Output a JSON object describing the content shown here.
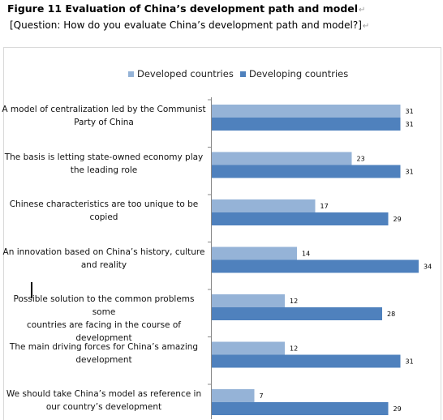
{
  "header": {
    "title": "Figure 11 Evaluation of China’s development path and model",
    "subtitle": "[Question: How do you evaluate China’s development path and model?]"
  },
  "colors": {
    "developed": "#95b3d7",
    "developing": "#4f81bd"
  },
  "chart_data": {
    "type": "bar",
    "orientation": "horizontal",
    "legend_position": "top",
    "grid": false,
    "categories": [
      "A model of centralization led by the Communist Party of China",
      "The basis is letting state-owned economy play the leading role",
      "Chinese characteristics are too unique to be copied",
      "An innovation based on China’s history, culture and reality",
      "Possible solution to the common problems some countries are facing in the course of development",
      "The main driving forces for China’s amazing development",
      "We should take China’s model as reference in our country’s development"
    ],
    "category_lines": [
      [
        "A model of centralization led by the Communist",
        "Party of China"
      ],
      [
        "The basis is letting state-owned economy play",
        "the leading role"
      ],
      [
        "Chinese characteristics are too unique to be",
        "copied"
      ],
      [
        "An innovation based on China’s history, culture",
        "and reality"
      ],
      [
        "Possible solution to the common problems some",
        "countries are facing in the course of development"
      ],
      [
        "The main driving forces for China’s amazing",
        "development"
      ],
      [
        "We should take China’s model as reference in",
        "our country’s development"
      ]
    ],
    "series": [
      {
        "name": "Developed countries",
        "values": [
          31,
          23,
          17,
          14,
          12,
          12,
          7
        ]
      },
      {
        "name": "Developing countries",
        "values": [
          31,
          31,
          29,
          34,
          28,
          31,
          29
        ]
      }
    ],
    "xlim": [
      0,
      36
    ]
  }
}
